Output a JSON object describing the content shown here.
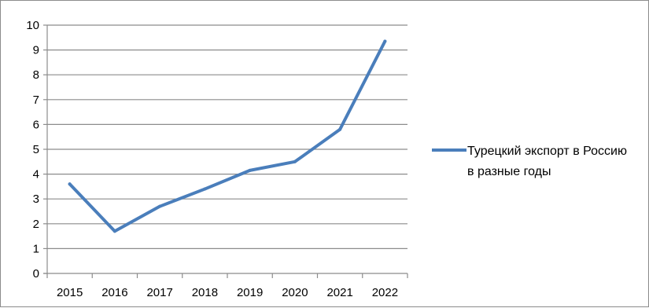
{
  "chart_data": {
    "type": "line",
    "title": "",
    "xlabel": "",
    "ylabel": "",
    "x": [
      "2015",
      "2016",
      "2017",
      "2018",
      "2019",
      "2020",
      "2021",
      "2022"
    ],
    "ylim": [
      0,
      10
    ],
    "yticks": [
      "0",
      "1",
      "2",
      "3",
      "4",
      "5",
      "6",
      "7",
      "8",
      "9",
      "10"
    ],
    "grid": "horizontal",
    "legend_position": "right",
    "series": [
      {
        "name": "Турецкий экспорт в Россию в разные годы",
        "name_lines": [
          "Турецкий экспорт в Россию",
          "в разные годы"
        ],
        "color": "#4a7ebb",
        "values": [
          3.6,
          1.7,
          2.7,
          3.4,
          4.15,
          4.5,
          5.8,
          9.35
        ]
      }
    ]
  }
}
